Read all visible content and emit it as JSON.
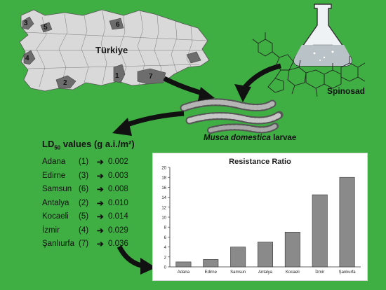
{
  "map": {
    "country_label": "Türkiye",
    "region_numbers": [
      "1",
      "2",
      "3",
      "4",
      "5",
      "6",
      "7"
    ]
  },
  "compound": {
    "label": "Spinosad"
  },
  "larvae": {
    "species": "Musca domestica",
    "suffix": "larvae"
  },
  "ld50": {
    "title_prefix": "LD",
    "title_sub": "50",
    "title_suffix": " values (g a.i./m²)",
    "rows": [
      {
        "city": "Adana",
        "code": "(1)",
        "value": "0.002"
      },
      {
        "city": "Edirne",
        "code": "(3)",
        "value": "0.003"
      },
      {
        "city": "Samsun",
        "code": "(6)",
        "value": "0.008"
      },
      {
        "city": "Antalya",
        "code": "(2)",
        "value": "0.010"
      },
      {
        "city": "Kocaeli",
        "code": "(5)",
        "value": "0.014"
      },
      {
        "city": "İzmir",
        "code": "(4)",
        "value": "0.029"
      },
      {
        "city": "Şanlıurfa",
        "code": "(7)",
        "value": "0.036"
      }
    ]
  },
  "colors": {
    "background": "#3fae43",
    "map_fill": "#d9d9d9",
    "region_fill": "#6d6d6d",
    "bar_fill": "#8a8a8a",
    "arrow": "#111111"
  },
  "chart_data": {
    "type": "bar",
    "title": "Resistance Ratio",
    "categories": [
      "Adana",
      "Edirne",
      "Samsun",
      "Antalya",
      "Kocaeli",
      "İzmir",
      "Şanlıurfa"
    ],
    "values": [
      1.0,
      1.5,
      4.0,
      5.0,
      7.0,
      14.5,
      18.0
    ],
    "ylim": [
      0,
      20
    ],
    "yticks": [
      0,
      2,
      4,
      6,
      8,
      10,
      12,
      14,
      16,
      18,
      20
    ],
    "xlabel": "",
    "ylabel": "",
    "grid": false
  }
}
